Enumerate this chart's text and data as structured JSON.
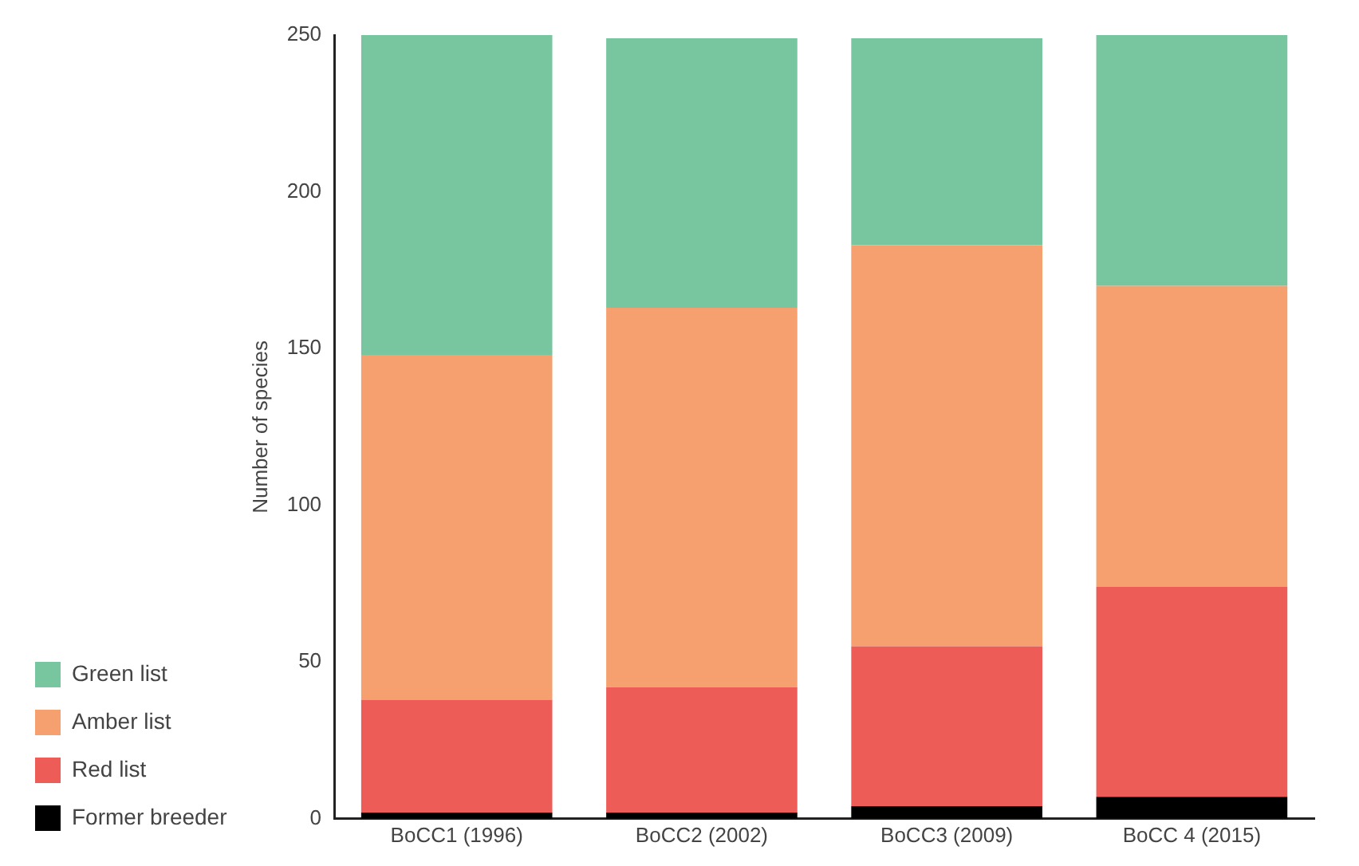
{
  "chart_data": {
    "type": "bar",
    "stacked": true,
    "ylabel": "Number of species",
    "categories": [
      "BoCC1 (1996)",
      "BoCC2 (2002)",
      "BoCC3 (2009)",
      "BoCC 4 (2015)"
    ],
    "series": [
      {
        "name": "Former breeder",
        "color": "#000000",
        "values": [
          2,
          2,
          4,
          7
        ]
      },
      {
        "name": "Red list",
        "color": "#ee5c58",
        "values": [
          36,
          40,
          51,
          67
        ]
      },
      {
        "name": "Amber list",
        "color": "#f5a06e",
        "values": [
          110,
          121,
          128,
          96
        ]
      },
      {
        "name": "Green list",
        "color": "#78c6a0",
        "values": [
          102,
          86,
          66,
          80
        ]
      }
    ],
    "ylim": [
      0,
      250
    ],
    "yticks": [
      0,
      50,
      100,
      150,
      200,
      250
    ],
    "grid": false,
    "legend": "bottom left"
  }
}
